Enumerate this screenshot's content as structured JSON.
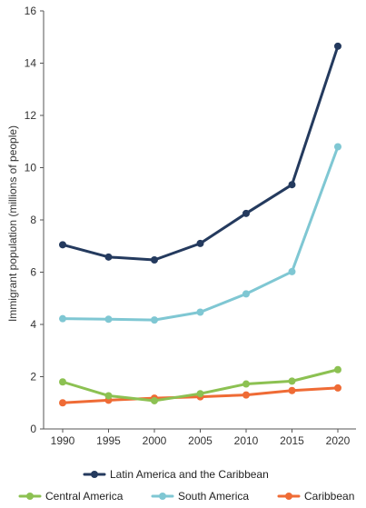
{
  "chart_data": {
    "type": "line",
    "title": "",
    "xlabel": "",
    "ylabel": "Immigrant population (millions of people)",
    "x": [
      "1990",
      "1995",
      "2000",
      "2005",
      "2010",
      "2015",
      "2020"
    ],
    "ylim": [
      0,
      16
    ],
    "yticks": [
      0,
      2,
      4,
      6,
      8,
      10,
      12,
      14,
      16
    ],
    "grid": false,
    "legend_position": "bottom",
    "series": [
      {
        "name": "Latin America and the Caribbean",
        "color": "#243a5e",
        "values": [
          7.05,
          6.58,
          6.47,
          7.1,
          8.25,
          9.35,
          14.65
        ]
      },
      {
        "name": "Central America",
        "color": "#8cc152",
        "values": [
          1.8,
          1.27,
          1.08,
          1.35,
          1.72,
          1.83,
          2.27
        ]
      },
      {
        "name": "South America",
        "color": "#7fc7d3",
        "values": [
          4.22,
          4.2,
          4.17,
          4.47,
          5.17,
          6.02,
          10.8
        ]
      },
      {
        "name": "Caribbean",
        "color": "#ef6b35",
        "values": [
          1.0,
          1.1,
          1.18,
          1.23,
          1.3,
          1.47,
          1.57
        ]
      }
    ]
  }
}
